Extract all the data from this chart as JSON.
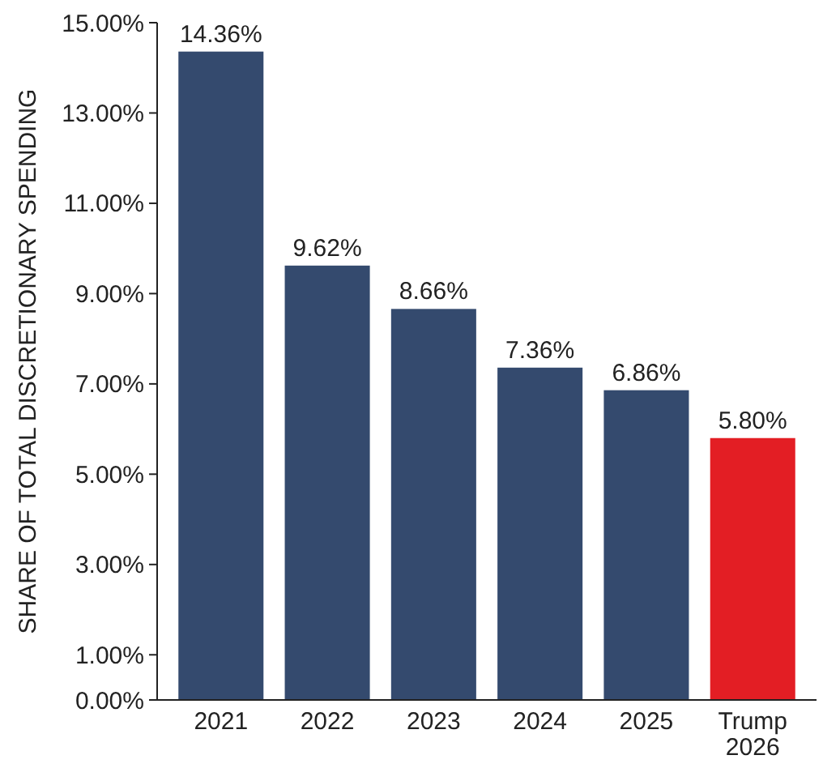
{
  "chart_data": {
    "type": "bar",
    "ylabel": "SHARE OF TOTAL DISCRETIONARY SPENDING",
    "categories": [
      "2021",
      "2022",
      "2023",
      "2024",
      "2025",
      "Trump 2026"
    ],
    "values": [
      14.36,
      9.62,
      8.66,
      7.36,
      6.86,
      5.8
    ],
    "value_labels": [
      "14.36%",
      "9.62%",
      "8.66%",
      "7.36%",
      "6.86%",
      "5.80%"
    ],
    "colors": [
      "#344a6e",
      "#344a6e",
      "#344a6e",
      "#344a6e",
      "#344a6e",
      "#e31e24"
    ],
    "ylim": [
      0,
      15
    ],
    "yticks": [
      {
        "value": 0,
        "label": "0.00%"
      },
      {
        "value": 1,
        "label": "1.00%"
      },
      {
        "value": 3,
        "label": "3.00%"
      },
      {
        "value": 5,
        "label": "5.00%"
      },
      {
        "value": 7,
        "label": "7.00%"
      },
      {
        "value": 9,
        "label": "9.00%"
      },
      {
        "value": 11,
        "label": "11.00%"
      },
      {
        "value": 13,
        "label": "13.00%"
      },
      {
        "value": 15,
        "label": "15.00%"
      }
    ],
    "grid": false
  }
}
